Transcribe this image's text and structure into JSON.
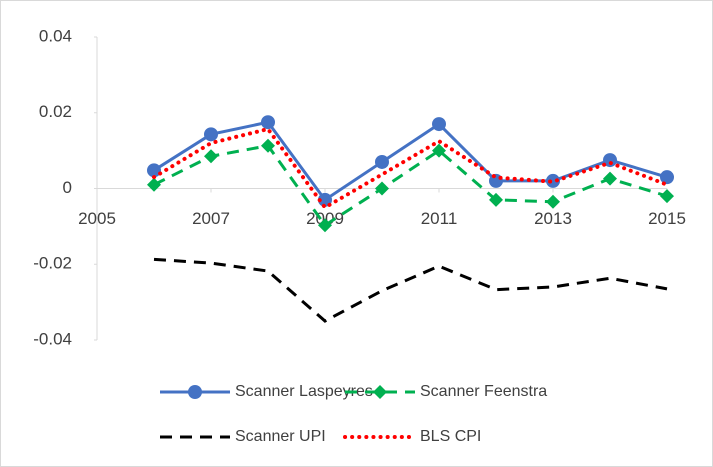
{
  "chart_data": {
    "type": "line",
    "x": [
      2006,
      2007,
      2008,
      2009,
      2010,
      2011,
      2012,
      2013,
      2014,
      2015
    ],
    "series": [
      {
        "name": "Scanner Laspeyres",
        "color": "#4472c4",
        "style": "solid",
        "marker": "circle",
        "values": [
          0.0048,
          0.0143,
          0.0175,
          -0.003,
          0.007,
          0.017,
          0.002,
          0.002,
          0.0075,
          0.003
        ]
      },
      {
        "name": "Scanner Feenstra",
        "color": "#00b050",
        "style": "dashed",
        "marker": "diamond",
        "values": [
          0.001,
          0.0085,
          0.0113,
          -0.0097,
          0,
          0.01,
          -0.003,
          -0.0035,
          0.0026,
          -0.002
        ]
      },
      {
        "name": "Scanner UPI",
        "color": "#000000",
        "style": "dashed",
        "marker": "none",
        "values": [
          -0.0187,
          -0.0197,
          -0.0218,
          -0.035,
          -0.027,
          -0.0205,
          -0.0267,
          -0.026,
          -0.0237,
          -0.0265
        ]
      },
      {
        "name": "BLS CPI",
        "color": "#ff0000",
        "style": "dotted",
        "marker": "none",
        "values": [
          0.003,
          0.012,
          0.0157,
          -0.005,
          0.0037,
          0.0125,
          0.0029,
          0.0018,
          0.0068,
          0.001
        ]
      }
    ],
    "xlim": [
      2005,
      2015
    ],
    "xticks": [
      2005,
      2007,
      2009,
      2011,
      2013,
      2015
    ],
    "ylim": [
      -0.04,
      0.04
    ],
    "yticks": [
      -0.04,
      -0.02,
      0,
      0.02,
      0.04
    ],
    "grid": false,
    "legend": "bottom"
  }
}
